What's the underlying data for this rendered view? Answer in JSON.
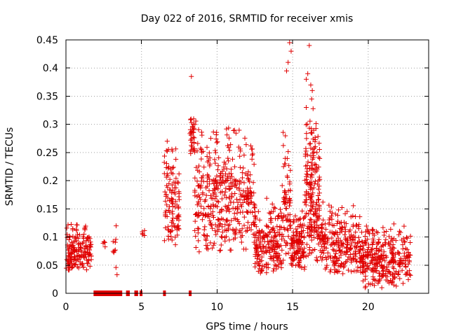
{
  "chart_data": {
    "type": "scatter",
    "title": "Day 022 of 2016, SRMTID for receiver xmis",
    "xlabel": "GPS time / hours",
    "ylabel": "SRMTID / TECUs",
    "xlim": [
      0,
      24
    ],
    "ylim": [
      0,
      0.45
    ],
    "x_ticks": [
      0,
      5,
      10,
      15,
      20
    ],
    "x_tick_labels": [
      "0",
      "5",
      "10",
      "15",
      "20"
    ],
    "y_ticks": [
      0,
      0.05,
      0.1,
      0.15,
      0.2,
      0.25,
      0.3,
      0.35,
      0.4,
      0.45
    ],
    "y_tick_labels": [
      "0",
      "0.05",
      "0.1",
      "0.15",
      "0.2",
      "0.25",
      "0.3",
      "0.35",
      "0.4",
      "0.45"
    ],
    "grid": true,
    "marker": "+",
    "color": "#e00000",
    "series": [
      {
        "name": "SRMTID",
        "clusters": [
          {
            "x_start": 0.0,
            "x_end": 1.7,
            "y_min": 0.04,
            "y_max": 0.13,
            "count": 180
          },
          {
            "x_start": 2.4,
            "x_end": 2.6,
            "y_min": 0.08,
            "y_max": 0.1,
            "count": 4
          },
          {
            "x_start": 3.1,
            "x_end": 3.4,
            "y_min": 0.03,
            "y_max": 0.14,
            "count": 10
          },
          {
            "x_start": 5.0,
            "x_end": 5.2,
            "y_min": 0.1,
            "y_max": 0.12,
            "count": 5
          },
          {
            "x_start": 6.5,
            "x_end": 7.5,
            "y_min": 0.08,
            "y_max": 0.27,
            "count": 110
          },
          {
            "x_start": 8.2,
            "x_end": 8.5,
            "y_min": 0.24,
            "y_max": 0.32,
            "count": 35
          },
          {
            "x_start": 8.5,
            "x_end": 12.5,
            "y_min": 0.07,
            "y_max": 0.31,
            "count": 420
          },
          {
            "x_start": 12.5,
            "x_end": 14.3,
            "y_min": 0.03,
            "y_max": 0.17,
            "count": 200
          },
          {
            "x_start": 14.3,
            "x_end": 14.9,
            "y_min": 0.05,
            "y_max": 0.3,
            "count": 70
          },
          {
            "x_start": 14.9,
            "x_end": 15.8,
            "y_min": 0.04,
            "y_max": 0.15,
            "count": 120
          },
          {
            "x_start": 15.8,
            "x_end": 16.8,
            "y_min": 0.05,
            "y_max": 0.35,
            "count": 200
          },
          {
            "x_start": 16.8,
            "x_end": 19.5,
            "y_min": 0.03,
            "y_max": 0.17,
            "count": 250
          },
          {
            "x_start": 19.5,
            "x_end": 22.8,
            "y_min": 0.01,
            "y_max": 0.13,
            "count": 320
          }
        ],
        "notable_points": [
          {
            "x": 8.3,
            "y": 0.385
          },
          {
            "x": 14.8,
            "y": 0.445
          },
          {
            "x": 14.9,
            "y": 0.43
          },
          {
            "x": 14.6,
            "y": 0.395
          },
          {
            "x": 14.7,
            "y": 0.41
          },
          {
            "x": 16.1,
            "y": 0.44
          },
          {
            "x": 16.0,
            "y": 0.39
          },
          {
            "x": 15.9,
            "y": 0.38
          },
          {
            "x": 16.2,
            "y": 0.37
          },
          {
            "x": 16.3,
            "y": 0.36
          },
          {
            "x": 15.9,
            "y": 0.33
          },
          {
            "x": 6.7,
            "y": 0.27
          },
          {
            "x": 20.9,
            "y": 0.01
          },
          {
            "x": 19.8,
            "y": 0.01
          }
        ],
        "zero_segments": [
          {
            "x_start": 1.85,
            "x_end": 3.7
          },
          {
            "x_start": 4.0,
            "x_end": 4.2
          },
          {
            "x_start": 4.55,
            "x_end": 4.75
          },
          {
            "x_start": 4.9,
            "x_end": 5.0
          },
          {
            "x_start": 6.45,
            "x_end": 6.55
          },
          {
            "x_start": 8.15,
            "x_end": 8.25
          }
        ]
      }
    ]
  }
}
